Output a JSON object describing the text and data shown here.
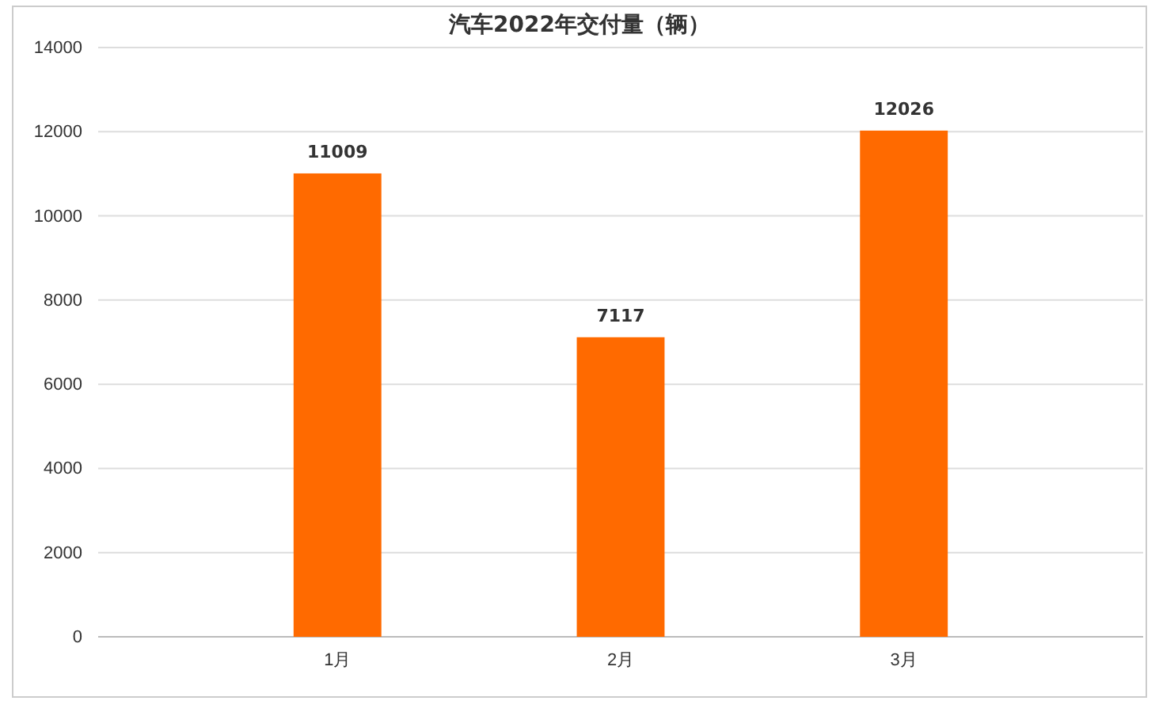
{
  "chart_data": {
    "type": "bar",
    "title": "汽车2022年交付量（辆）",
    "categories": [
      "1月",
      "2月",
      "3月"
    ],
    "values": [
      11009,
      7117,
      12026
    ],
    "color": "#ff6a00",
    "ylim": [
      0,
      14000
    ],
    "yticks": [
      0,
      2000,
      4000,
      6000,
      8000,
      10000,
      12000,
      14000
    ],
    "grid": "y",
    "data_labels": true
  }
}
